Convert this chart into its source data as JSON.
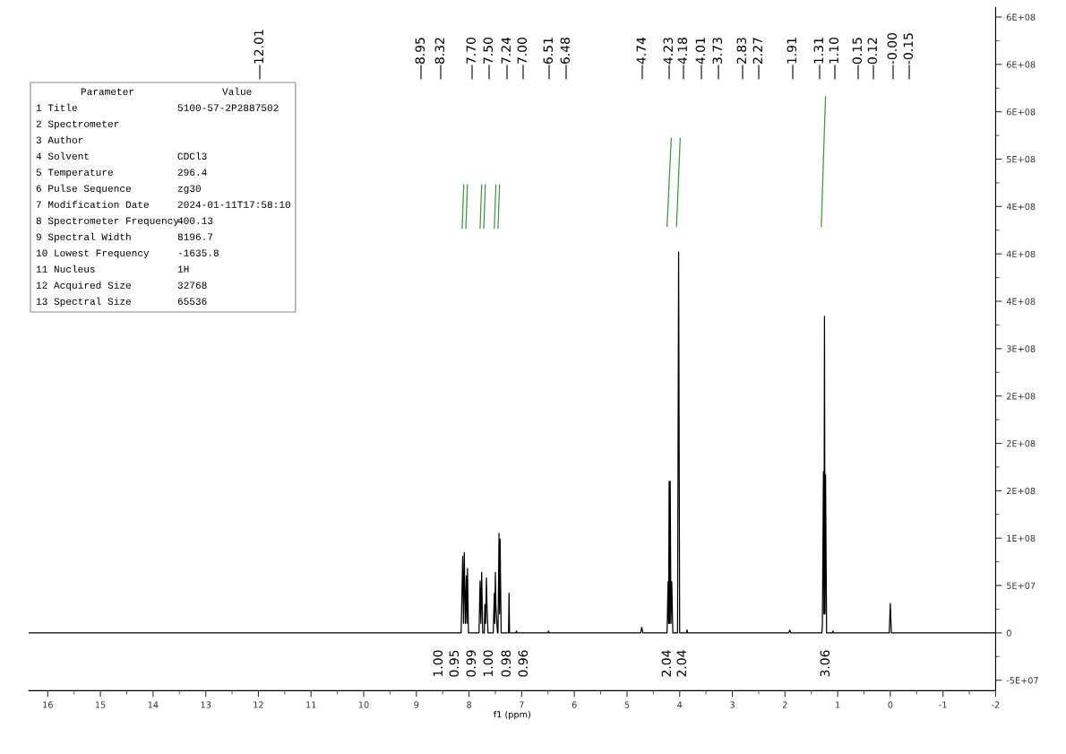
{
  "chart_data": {
    "type": "line",
    "xlabel": "f1 (ppm)",
    "xlim": [
      16.36,
      -2
    ],
    "ylim": [
      -61000000,
      660000000
    ],
    "xticks": [
      16,
      15,
      14,
      13,
      12,
      11,
      10,
      9,
      8,
      7,
      6,
      5,
      4,
      3,
      2,
      1,
      0,
      {
        "value": -1,
        "label": "-1"
      },
      {
        "value": -2,
        "label": "-2"
      }
    ],
    "yticks": [
      {
        "value": -50000000,
        "label": "-5E+07"
      },
      0,
      {
        "value": 50000000,
        "label": "5E+07"
      },
      {
        "value": 100000000,
        "label": "1E+08"
      },
      {
        "value": 150000000,
        "label": "2E+08"
      },
      {
        "value": 200000000,
        "label": "2E+08"
      },
      {
        "value": 250000000,
        "label": "2E+08"
      },
      {
        "value": 300000000,
        "label": "3E+08"
      },
      {
        "value": 350000000,
        "label": "4E+08"
      },
      {
        "value": 400000000,
        "label": "4E+08"
      },
      {
        "value": 450000000,
        "label": "4E+08"
      },
      {
        "value": 500000000,
        "label": "5E+08"
      },
      {
        "value": 550000000,
        "label": "6E+08"
      },
      {
        "value": 600000000,
        "label": "6E+08"
      },
      {
        "value": 650000000,
        "label": "6E+08"
      }
    ],
    "series": [
      {
        "color": "#000000",
        "x": [
          16.36,
          8.15,
          8.12,
          8.105,
          8.09,
          8.07,
          8.05,
          8.04,
          8.03,
          8.01,
          7.81,
          7.79,
          7.775,
          7.76,
          7.74,
          7.71,
          7.7,
          7.685,
          7.67,
          7.66,
          7.64,
          7.54,
          7.52,
          7.51,
          7.5,
          7.49,
          7.46,
          7.45,
          7.43,
          7.42,
          7.41,
          7.39,
          7.25,
          7.24,
          7.23,
          7.11,
          7.1,
          7.09,
          6.5,
          6.49,
          6.48,
          4.74,
          4.72,
          4.7,
          4.24,
          4.22,
          4.21,
          4.2,
          4.19,
          4.18,
          4.165,
          4.15,
          4.13,
          4.04,
          4.02,
          4.0,
          3.87,
          3.86,
          3.85,
          1.93,
          1.91,
          1.89,
          1.3,
          1.29,
          1.27,
          1.26,
          1.25,
          1.24,
          1.23,
          1.21,
          1.1,
          1.09,
          1.08,
          0.02,
          0.0,
          -0.02,
          -2
        ],
        "values": [
          0,
          0,
          81000000,
          10000000,
          85000000,
          10000000,
          60000000,
          10000000,
          68000000,
          0,
          0,
          55000000,
          10000000,
          64000000,
          0,
          0,
          30000000,
          10000000,
          58000000,
          32000000,
          0,
          0,
          42000000,
          10000000,
          64000000,
          29000000,
          0,
          0,
          105000000,
          20000000,
          99000000,
          0,
          0,
          42000000,
          0,
          0,
          2000000,
          0,
          0,
          2000000,
          0,
          0,
          6000000,
          0,
          0,
          54000000,
          10000000,
          160000000,
          10000000,
          160000000,
          10000000,
          54000000,
          0,
          0,
          402000000,
          0,
          0,
          3000000,
          0,
          0,
          3000000,
          0,
          0,
          8000000,
          170000000,
          20000000,
          334000000,
          20000000,
          167000000,
          0,
          0,
          2000000,
          0,
          0,
          31000000,
          0,
          0
        ]
      },
      {
        "color": "#3c9a3c",
        "x": [
          8.13,
          8.115,
          8.1
        ],
        "values": [
          427000000,
          450000000,
          473000000
        ]
      },
      {
        "color": "#3c9a3c",
        "x": [
          8.06,
          8.045,
          8.03
        ],
        "values": [
          427000000,
          450000000,
          473000000
        ]
      },
      {
        "color": "#3c9a3c",
        "x": [
          7.79,
          7.775,
          7.76
        ],
        "values": [
          427000000,
          450000000,
          473000000
        ]
      },
      {
        "color": "#3c9a3c",
        "x": [
          7.72,
          7.705,
          7.69
        ],
        "values": [
          427000000,
          450000000,
          473000000
        ]
      },
      {
        "color": "#3c9a3c",
        "x": [
          7.52,
          7.505,
          7.49
        ],
        "values": [
          427000000,
          450000000,
          473000000
        ]
      },
      {
        "color": "#3c9a3c",
        "x": [
          7.45,
          7.435,
          7.42
        ],
        "values": [
          427000000,
          450000000,
          473000000
        ]
      },
      {
        "color": "#3c9a3c",
        "x": [
          4.24,
          4.2,
          4.16
        ],
        "values": [
          429000000,
          475000000,
          522000000
        ]
      },
      {
        "color": "#3c9a3c",
        "x": [
          4.06,
          4.025,
          3.99
        ],
        "values": [
          429000000,
          475000000,
          522000000
        ]
      },
      {
        "color": "#3c9a3c",
        "x": [
          1.31,
          1.27,
          1.23
        ],
        "values": [
          429000000,
          500000000,
          566000000
        ]
      }
    ],
    "annotations": [
      "12.01",
      "8.95",
      "8.32",
      "7.70",
      "7.50",
      "7.24",
      "7.00",
      "6.51",
      "6.48",
      "4.74",
      "4.23",
      "4.18",
      "4.01",
      "3.73",
      "2.83",
      "2.27",
      "1.91",
      "1.31",
      "1.10",
      "0.15",
      "0.12",
      "-0.00",
      "-0.15",
      "1.00",
      "0.95",
      "0.99",
      "1.00",
      "0.98",
      "0.96",
      "2.04",
      "2.04",
      "3.06",
      "Parameter\tValue",
      "1 Title\t5100-57-2P2887502",
      "2 Spectrometer",
      "3 Author",
      "4 Solvent\tCDCl3",
      "5 Temperature\t296.4",
      "6 Pulse Sequence\tzg30",
      "7 Modification Date\t2024-01-11T17:58:10",
      "8 Spectrometer Frequency\t400.13",
      "9 Spectral Width\t8196.7",
      "10 Lowest Frequency\t-1635.8",
      "11 Nucleus\t1H",
      "12 Acquired Size\t32768",
      "13 Spectral Size\t65536"
    ]
  }
}
